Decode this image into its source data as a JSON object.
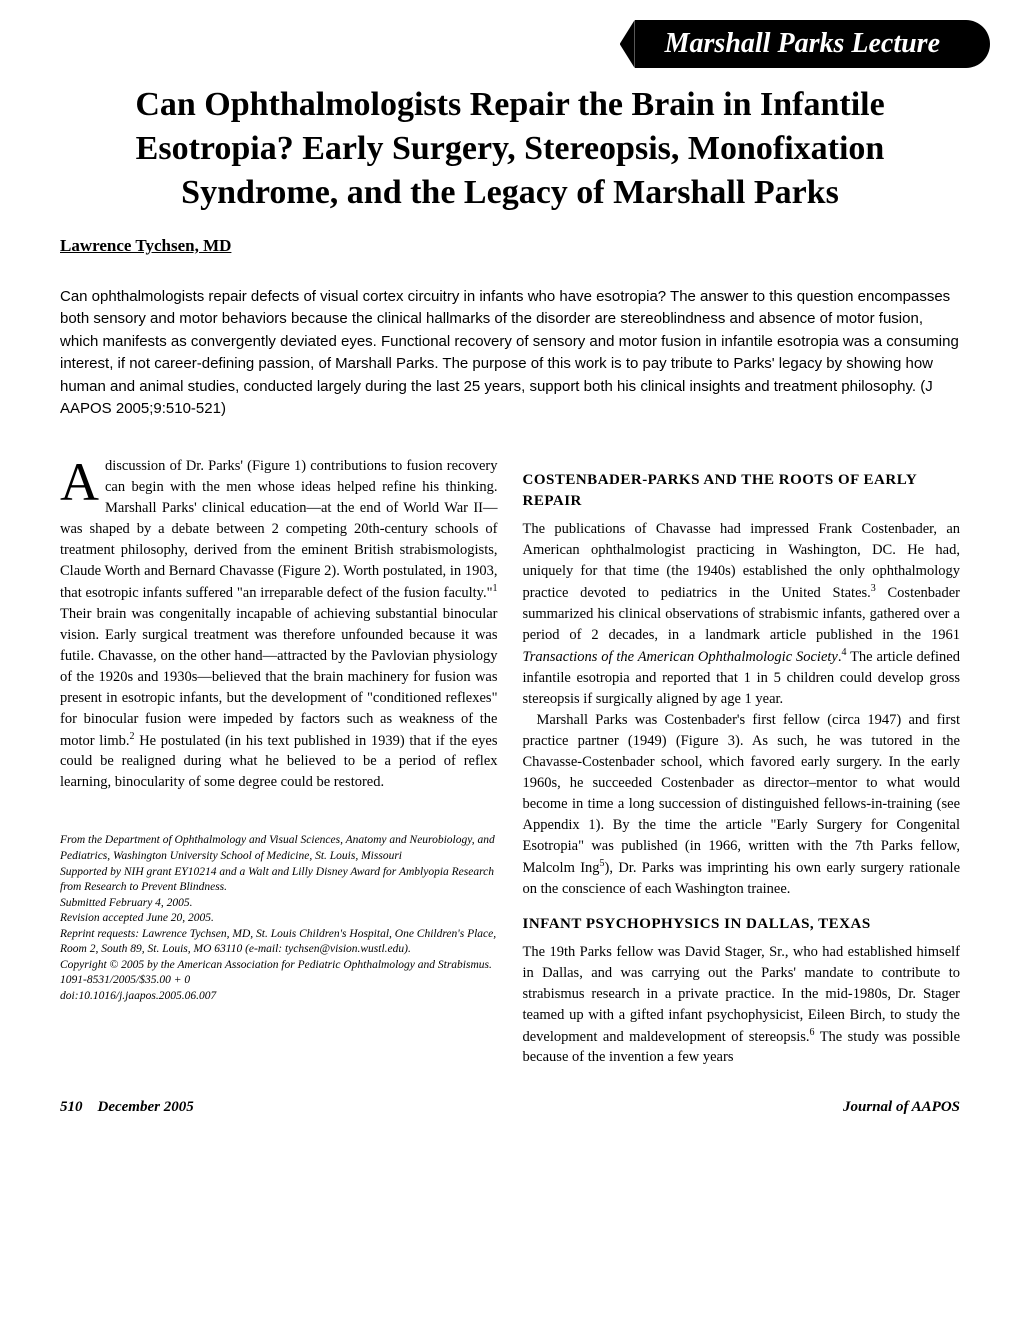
{
  "banner": "Marshall Parks Lecture",
  "title": "Can Ophthalmologists Repair the Brain in Infantile Esotropia? Early Surgery, Stereopsis, Monofixation Syndrome, and the Legacy of Marshall Parks",
  "author": "Lawrence Tychsen, MD",
  "abstract": "Can ophthalmologists repair defects of visual cortex circuitry in infants who have esotropia? The answer to this question encompasses both sensory and motor behaviors because the clinical hallmarks of the disorder are stereoblindness and absence of motor fusion, which manifests as convergently deviated eyes. Functional recovery of sensory and motor fusion in infantile esotropia was a consuming interest, if not career-defining passion, of Marshall Parks. The purpose of this work is to pay tribute to Parks' legacy by showing how human and animal studies, conducted largely during the last 25 years, support both his clinical insights and treatment philosophy. (J AAPOS 2005;9:510-521)",
  "left_column": {
    "intro_dropcap": "A",
    "intro_text": "discussion of Dr. Parks' (Figure 1) contributions to fusion recovery can begin with the men whose ideas helped refine his thinking. Marshall Parks' clinical education—at the end of World War II—was shaped by a debate between 2 competing 20th-century schools of treatment philosophy, derived from the eminent British strabismologists, Claude Worth and Bernard Chavasse (Figure 2). Worth postulated, in 1903, that esotropic infants suffered \"an irreparable defect of the fusion faculty.\"",
    "intro_sup1": "1",
    "intro_cont": " Their brain was congenitally incapable of achieving substantial binocular vision. Early surgical treatment was therefore unfounded because it was futile. Chavasse, on the other hand—attracted by the Pavlovian physiology of the 1920s and 1930s—believed that the brain machinery for fusion was present in esotropic infants, but the development of \"conditioned reflexes\" for binocular fusion were impeded by factors such as weakness of the motor limb.",
    "intro_sup2": "2",
    "intro_end": " He postulated (in his text published in 1939) that if the eyes could be realigned during what he believed to be a period of reflex learning, binocularity of some degree could be restored."
  },
  "footnotes": {
    "line1": "From the Department of Ophthalmology and Visual Sciences, Anatomy and Neurobiology, and Pediatrics, Washington University School of Medicine, St. Louis, Missouri",
    "line2": "Supported by NIH grant EY10214 and a Walt and Lilly Disney Award for Amblyopia Research from Research to Prevent Blindness.",
    "line3": "Submitted February 4, 2005.",
    "line4": "Revision accepted June 20, 2005.",
    "line5": "Reprint requests: Lawrence Tychsen, MD, St. Louis Children's Hospital, One Children's Place, Room 2, South 89, St. Louis, MO 63110 (e-mail: tychsen@vision.wustl.edu).",
    "line6": "Copyright © 2005 by the American Association for Pediatric Ophthalmology and Strabismus.",
    "line7": "1091-8531/2005/$35.00 + 0",
    "line8": "doi:10.1016/j.jaapos.2005.06.007"
  },
  "right_column": {
    "h1": "COSTENBADER-PARKS AND THE ROOTS OF EARLY REPAIR",
    "p1a": "The publications of Chavasse had impressed Frank Costenbader, an American ophthalmologist practicing in Washington, DC. He had, uniquely for that time (the 1940s) established the only ophthalmology practice devoted to pediatrics in the United States.",
    "p1_sup3": "3",
    "p1b": " Costenbader summarized his clinical observations of strabismic infants, gathered over a period of 2 decades, in a landmark article published in the 1961 ",
    "p1_italic": "Transactions of the American Ophthalmologic Society",
    "p1c": ".",
    "p1_sup4": "4",
    "p1d": " The article defined infantile esotropia and reported that 1 in 5 children could develop gross stereopsis if surgically aligned by age 1 year.",
    "p2a": "Marshall Parks was Costenbader's first fellow (circa 1947) and first practice partner (1949) (Figure 3). As such, he was tutored in the Chavasse-Costenbader school, which favored early surgery. In the early 1960s, he succeeded Costenbader as director–mentor to what would become in time a long succession of distinguished fellows-in-training (see Appendix 1). By the time the article \"Early Surgery for Congenital Esotropia\" was published (in 1966, written with the 7th Parks fellow, Malcolm Ing",
    "p2_sup5": "5",
    "p2b": "), Dr. Parks was imprinting his own early surgery rationale on the conscience of each Washington trainee.",
    "h2": "INFANT PSYCHOPHYSICS IN DALLAS, TEXAS",
    "p3a": "The 19th Parks fellow was David Stager, Sr., who had established himself in Dallas, and was carrying out the Parks' mandate to contribute to strabismus research in a private practice. In the mid-1980s, Dr. Stager teamed up with a gifted infant psychophysicist, Eileen Birch, to study the development and maldevelopment of stereopsis.",
    "p3_sup6": "6",
    "p3b": " The study was possible because of the invention a few years"
  },
  "footer": {
    "left1": "510",
    "left2": "December 2005",
    "right": "Journal of AAPOS"
  }
}
